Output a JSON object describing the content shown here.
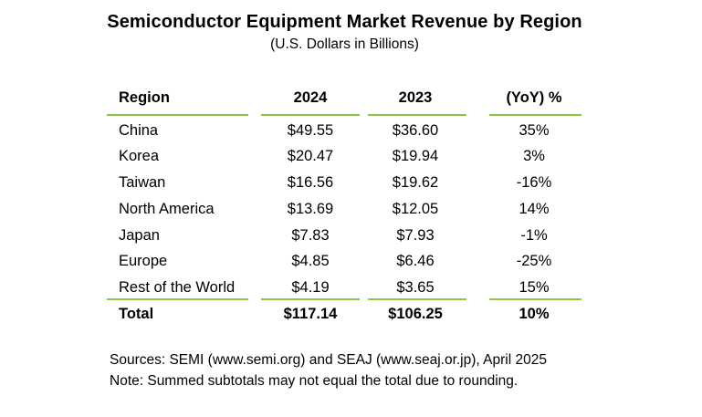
{
  "title": "Semiconductor Equipment Market Revenue by Region",
  "subtitle": "(U.S. Dollars in Billions)",
  "table": {
    "headers": {
      "region": "Region",
      "y2024": "2024",
      "y2023": "2023",
      "yoy": "(YoY) %"
    },
    "rows": [
      {
        "region": "China",
        "y2024": "$49.55",
        "y2023": "$36.60",
        "yoy": "35%"
      },
      {
        "region": "Korea",
        "y2024": "$20.47",
        "y2023": "$19.94",
        "yoy": "3%"
      },
      {
        "region": "Taiwan",
        "y2024": "$16.56",
        "y2023": "$19.62",
        "yoy": "-16%"
      },
      {
        "region": "North America",
        "y2024": "$13.69",
        "y2023": "$12.05",
        "yoy": "14%"
      },
      {
        "region": "Japan",
        "y2024": "$7.83",
        "y2023": "$7.93",
        "yoy": "-1%"
      },
      {
        "region": "Europe",
        "y2024": "$4.85",
        "y2023": "$6.46",
        "yoy": "-25%"
      },
      {
        "region": "Rest of the World",
        "y2024": "$4.19",
        "y2023": "$3.65",
        "yoy": "15%"
      }
    ],
    "total": {
      "region": "Total",
      "y2024": "$117.14",
      "y2023": "$106.25",
      "yoy": "10%"
    }
  },
  "notes": {
    "sources": "Sources: SEMI (www.semi.org) and SEAJ (www.seaj.or.jp), April 2025",
    "note": "Note: Summed subtotals may not equal the total due to rounding."
  },
  "colors": {
    "rule": "#8dc63f",
    "text": "#000000",
    "background": "#ffffff"
  }
}
